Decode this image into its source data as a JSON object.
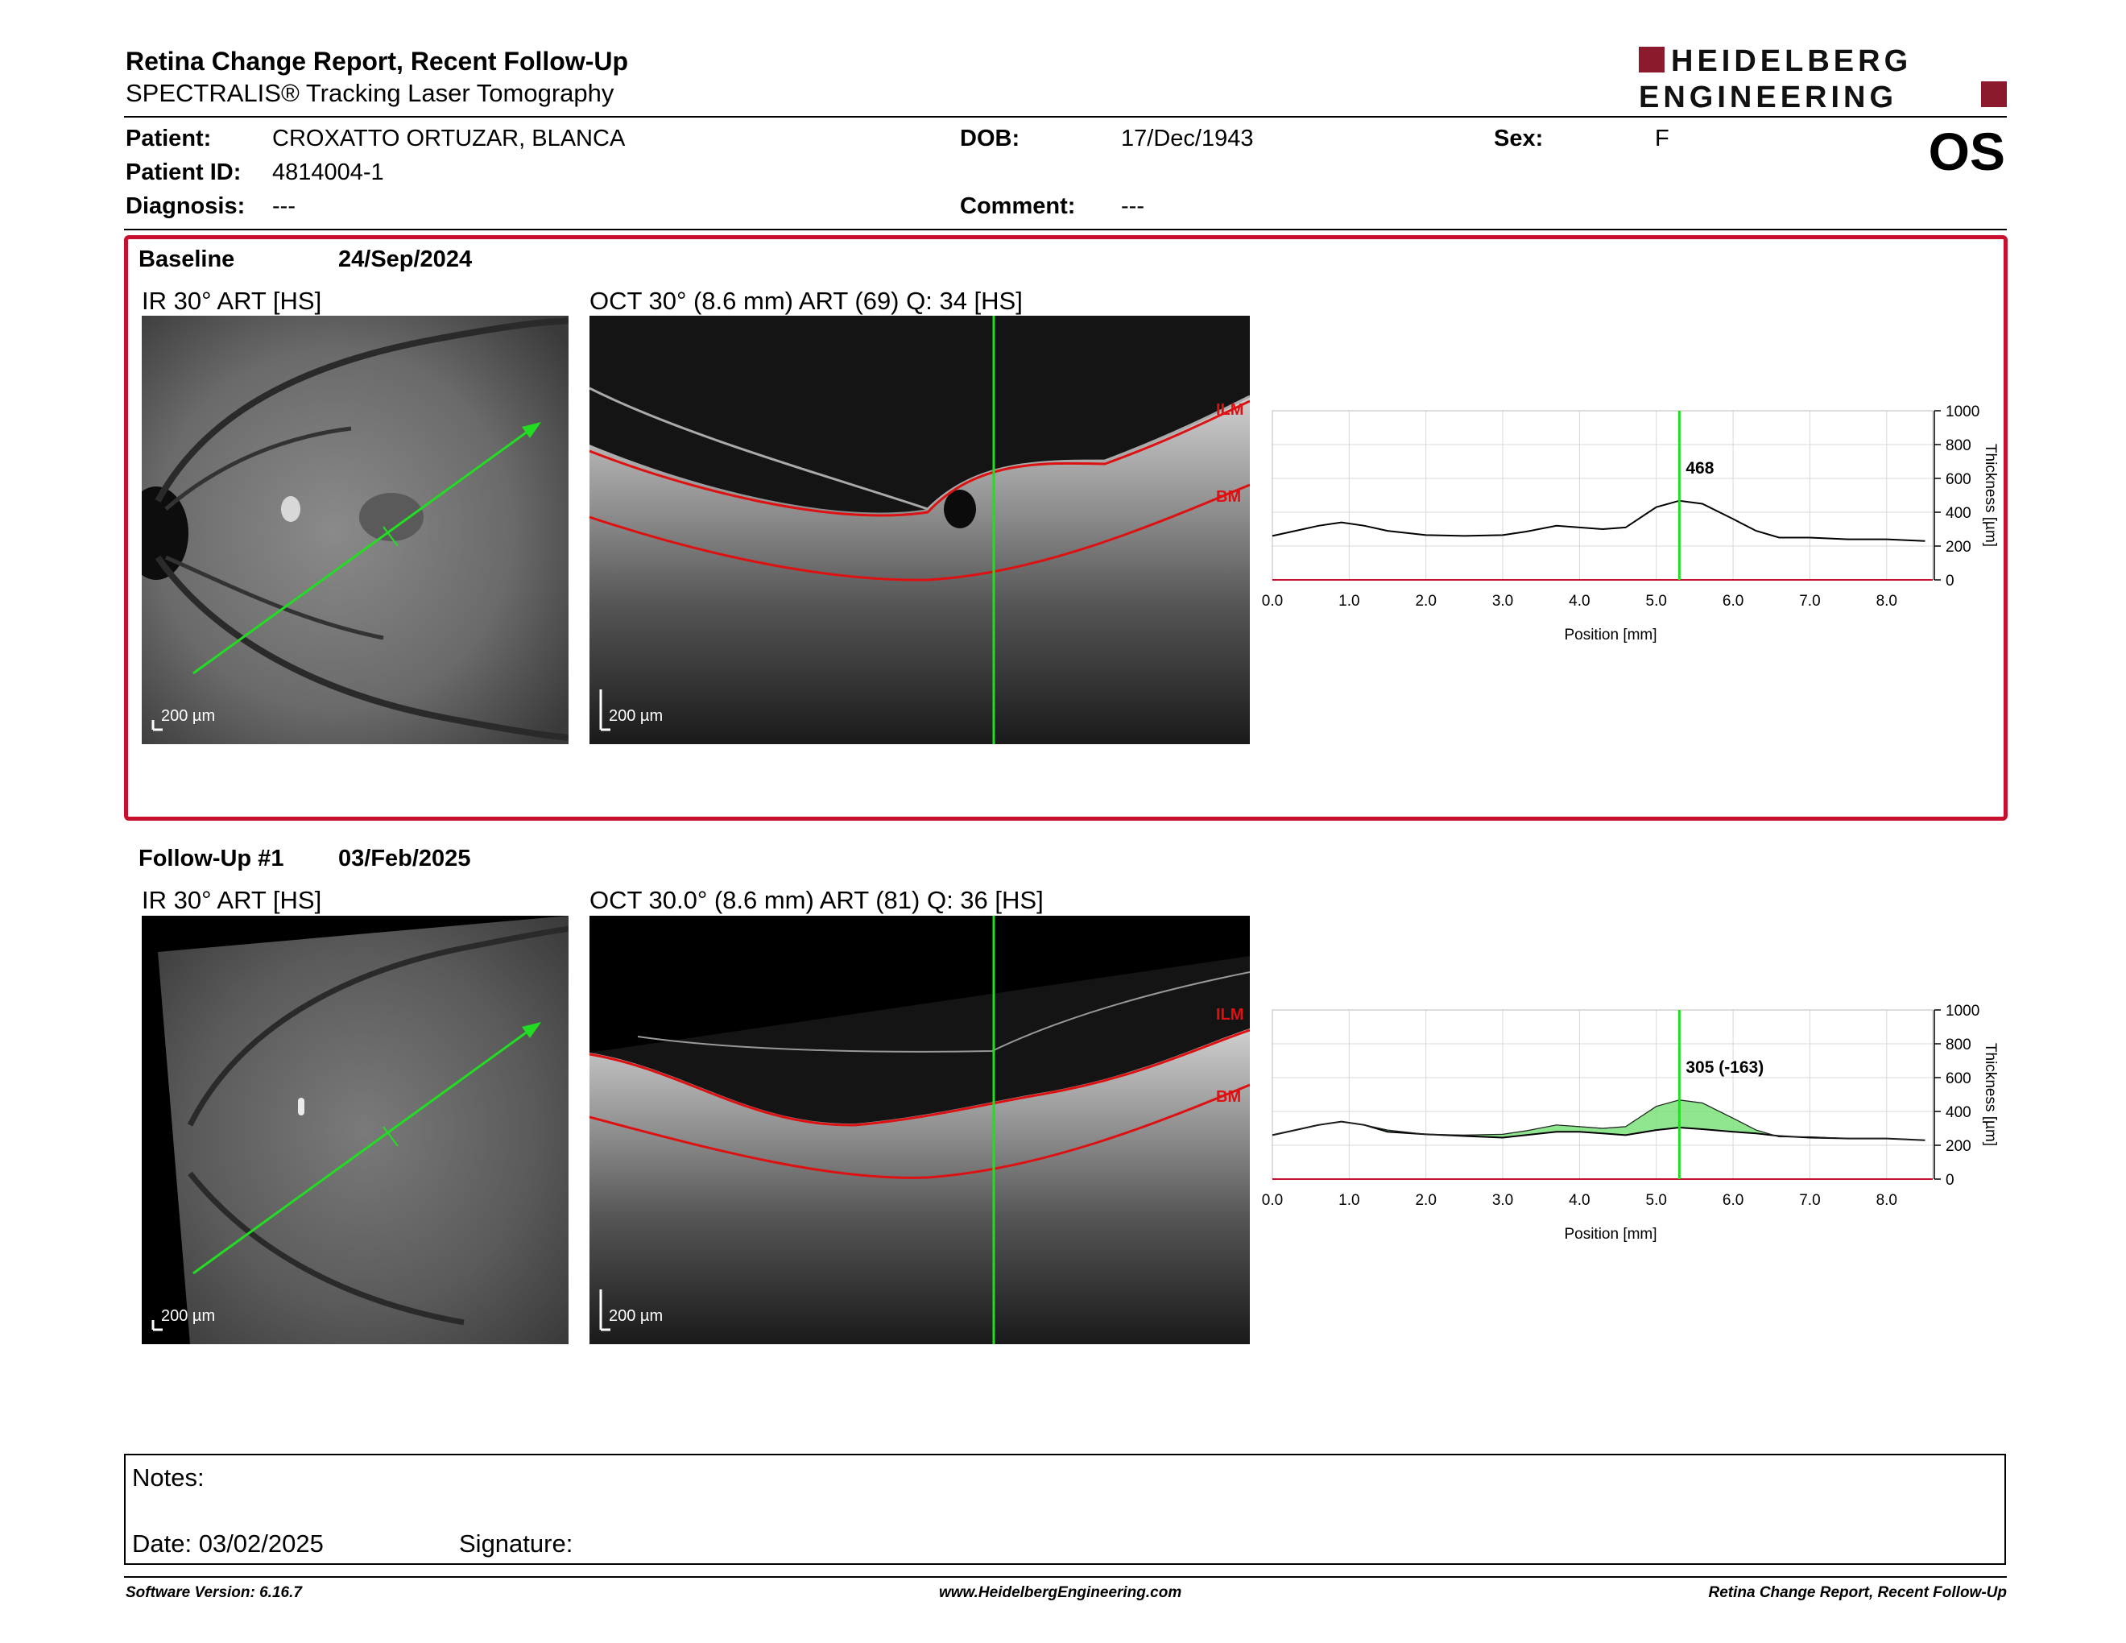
{
  "header": {
    "title": "Retina Change Report, Recent Follow-Up",
    "subtitle": "SPECTRALIS® Tracking Laser Tomography",
    "eye": "OS",
    "logo_line1": "HEIDELBERG",
    "logo_line2": "ENGINEERING"
  },
  "patient": {
    "patient_label": "Patient:",
    "patient_value": "CROXATTO ORTUZAR, BLANCA",
    "id_label": "Patient ID:",
    "id_value": "4814004-1",
    "diagnosis_label": "Diagnosis:",
    "diagnosis_value": "---",
    "dob_label": "DOB:",
    "dob_value": "17/Dec/1943",
    "comment_label": "Comment:",
    "comment_value": "---",
    "sex_label": "Sex:",
    "sex_value": "F"
  },
  "baseline": {
    "heading": "Baseline",
    "date": "24/Sep/2024",
    "ir_label": "IR 30° ART [HS]",
    "oct_label": "OCT 30° (8.6 mm) ART (69) Q: 34 [HS]",
    "scale_label": "200 µm",
    "ilm": "ILM",
    "bm": "BM",
    "marker_value": "468"
  },
  "followup": {
    "heading": "Follow-Up #1",
    "date": "03/Feb/2025",
    "ir_label": "IR 30° ART [HS]",
    "oct_label": "OCT 30.0° (8.6 mm) ART (81) Q: 36 [HS]",
    "scale_label": "200 µm",
    "ilm": "ILM",
    "bm": "BM",
    "marker_value": "305 (-163)"
  },
  "chart_data": [
    {
      "type": "line",
      "title": "",
      "xlabel": "Position [mm]",
      "ylabel": "Thickness [µm]",
      "xlim": [
        0,
        8.6
      ],
      "ylim": [
        0,
        1000
      ],
      "xticks": [
        "0.0",
        "1.0",
        "2.0",
        "3.0",
        "4.0",
        "5.0",
        "6.0",
        "7.0",
        "8.0"
      ],
      "yticks": [
        "0",
        "200",
        "400",
        "600",
        "800",
        "1000"
      ],
      "marker_x": 5.3,
      "series": [
        {
          "x": [
            0,
            0.3,
            0.6,
            0.9,
            1.2,
            1.5,
            2.0,
            2.5,
            3.0,
            3.3,
            3.7,
            4.0,
            4.3,
            4.6,
            5.0,
            5.3,
            5.6,
            6.0,
            6.3,
            6.6,
            7.0,
            7.5,
            8.0,
            8.5
          ],
          "values": [
            260,
            290,
            320,
            340,
            320,
            290,
            265,
            260,
            265,
            285,
            320,
            310,
            300,
            310,
            430,
            468,
            450,
            360,
            290,
            250,
            250,
            240,
            240,
            230
          ]
        }
      ]
    },
    {
      "type": "line",
      "title": "",
      "xlabel": "Position [mm]",
      "ylabel": "Thickness [µm]",
      "xlim": [
        0,
        8.6
      ],
      "ylim": [
        0,
        1000
      ],
      "xticks": [
        "0.0",
        "1.0",
        "2.0",
        "3.0",
        "4.0",
        "5.0",
        "6.0",
        "7.0",
        "8.0"
      ],
      "yticks": [
        "0",
        "200",
        "400",
        "600",
        "800",
        "1000"
      ],
      "marker_x": 5.3,
      "series": [
        {
          "x": [
            0,
            0.3,
            0.6,
            0.9,
            1.2,
            1.5,
            2.0,
            2.5,
            3.0,
            3.3,
            3.7,
            4.0,
            4.3,
            4.6,
            5.0,
            5.3,
            5.6,
            6.0,
            6.3,
            6.6,
            7.0,
            7.5,
            8.0,
            8.5
          ],
          "values": [
            260,
            290,
            320,
            340,
            320,
            280,
            265,
            255,
            245,
            260,
            280,
            280,
            270,
            260,
            290,
            305,
            295,
            280,
            270,
            255,
            245,
            240,
            240,
            230
          ]
        },
        {
          "x": [
            0,
            0.3,
            0.6,
            0.9,
            1.2,
            1.5,
            2.0,
            2.5,
            3.0,
            3.3,
            3.7,
            4.0,
            4.3,
            4.6,
            5.0,
            5.3,
            5.6,
            6.0,
            6.3,
            6.6,
            7.0,
            7.5,
            8.0,
            8.5
          ],
          "values": [
            260,
            290,
            320,
            340,
            320,
            290,
            265,
            260,
            265,
            285,
            320,
            310,
            300,
            310,
            430,
            468,
            450,
            360,
            290,
            250,
            250,
            240,
            240,
            230
          ]
        }
      ]
    }
  ],
  "notes": {
    "notes_label": "Notes:",
    "date_label": "Date: 03/02/2025",
    "signature_label": "Signature:"
  },
  "footer": {
    "software": "Software Version: 6.16.7",
    "website": "www.HeidelbergEngineering.com",
    "report": "Retina Change Report, Recent Follow-Up"
  },
  "colors": {
    "brand_red": "#c8102e",
    "marker_green": "#22dd22",
    "fill_green": "#7be27b"
  }
}
